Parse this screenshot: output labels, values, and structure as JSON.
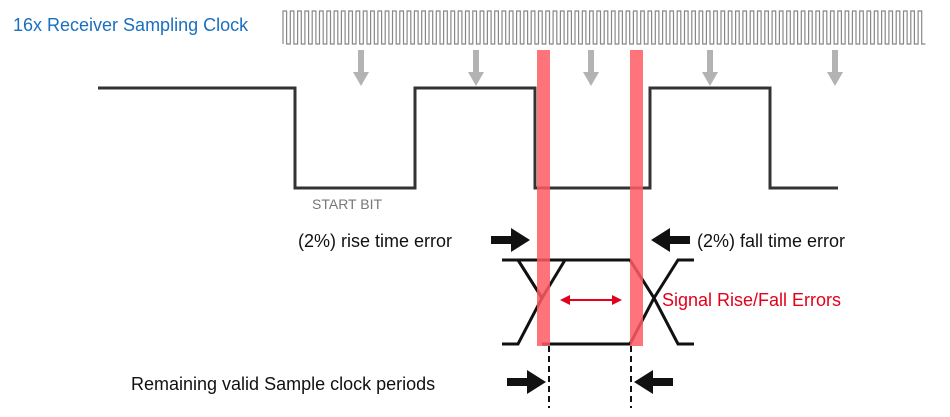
{
  "labels": {
    "clock_title": "16x Receiver Sampling Clock",
    "start_bit": "START BIT",
    "rise_error": "(2%) rise time error",
    "fall_error": "(2%) fall time error",
    "signal_errors": "Signal Rise/Fall Errors",
    "remaining": "Remaining valid Sample clock periods"
  },
  "colors": {
    "title_blue": "#1a6fbf",
    "signal_black": "#333333",
    "clock_gray": "#888888",
    "arrow_gray": "#b3b3b3",
    "error_band": "#ff5a64",
    "error_text": "#e3001b"
  }
}
